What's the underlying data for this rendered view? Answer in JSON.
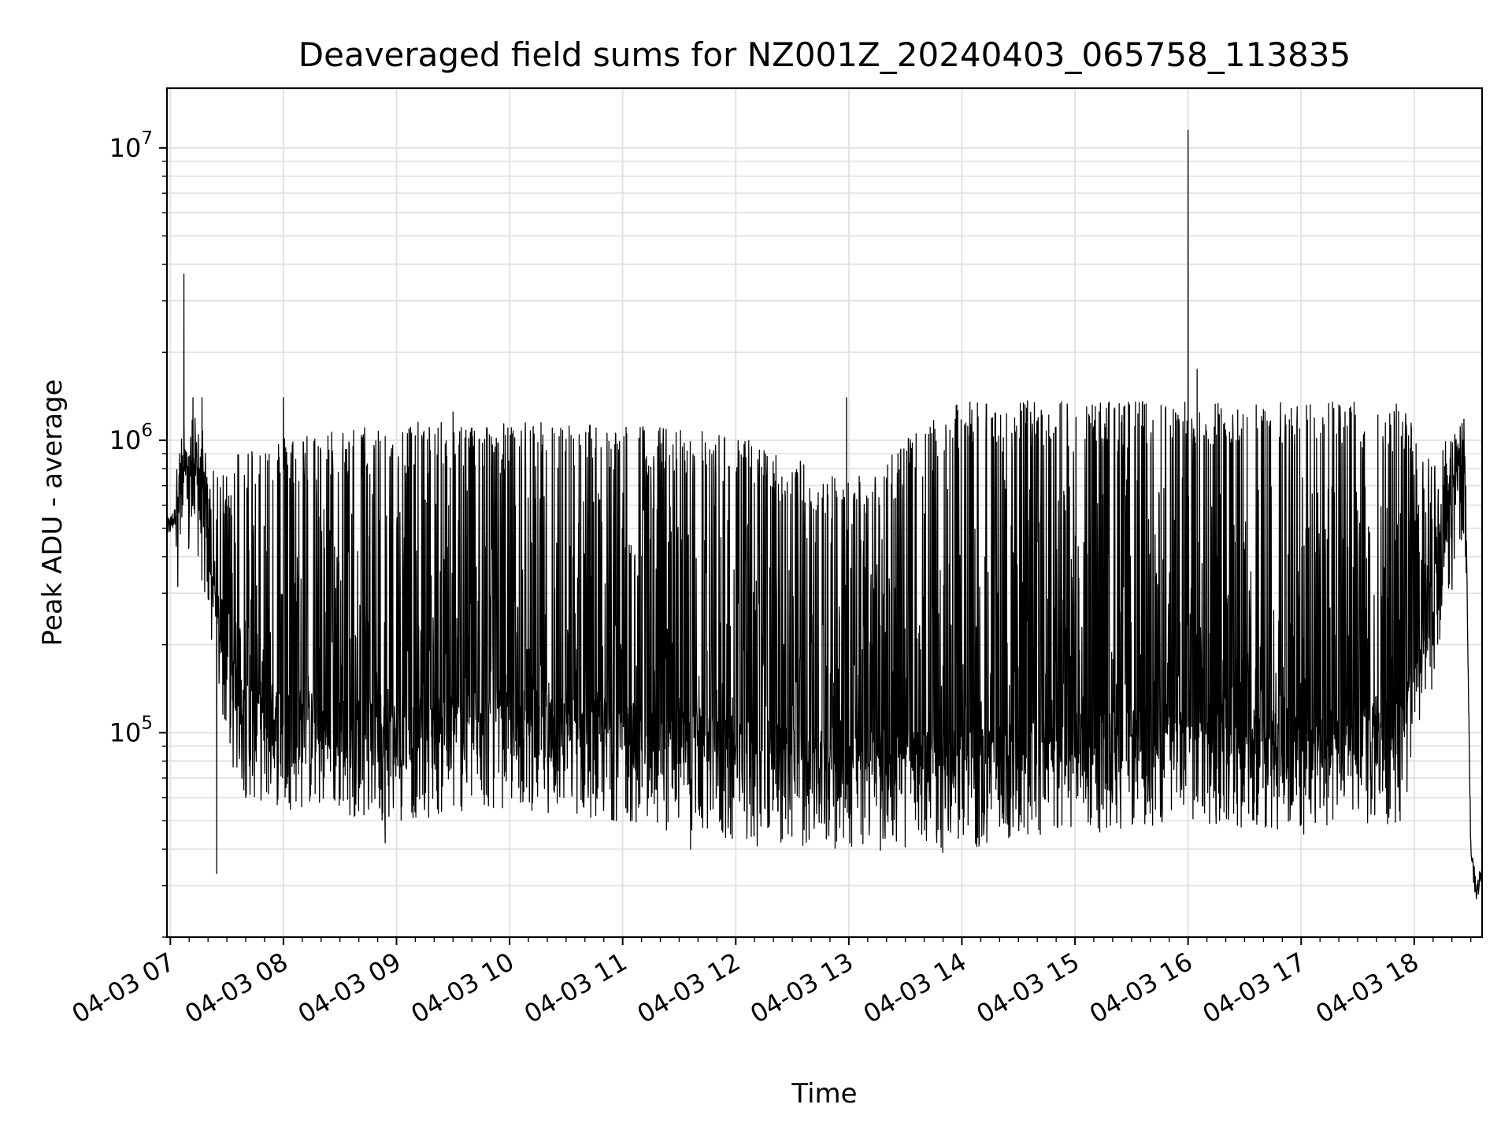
{
  "chart_data": {
    "type": "line",
    "title": "Deaveraged field sums for NZ001Z_20240403_065758_113835",
    "xlabel": "Time",
    "ylabel": "Peak ADU - average",
    "y_scale": "log",
    "ylim": [
      20000,
      16000000
    ],
    "x_range_hours": [
      6.97,
      18.6
    ],
    "grid": true,
    "legend": "none",
    "line_color": "#000000",
    "x_ticks": [
      {
        "hour": 7,
        "label": "04-03 07"
      },
      {
        "hour": 8,
        "label": "04-03 08"
      },
      {
        "hour": 9,
        "label": "04-03 09"
      },
      {
        "hour": 10,
        "label": "04-03 10"
      },
      {
        "hour": 11,
        "label": "04-03 11"
      },
      {
        "hour": 12,
        "label": "04-03 12"
      },
      {
        "hour": 13,
        "label": "04-03 13"
      },
      {
        "hour": 14,
        "label": "04-03 14"
      },
      {
        "hour": 15,
        "label": "04-03 15"
      },
      {
        "hour": 16,
        "label": "04-03 16"
      },
      {
        "hour": 17,
        "label": "04-03 17"
      },
      {
        "hour": 18,
        "label": "04-03 18"
      }
    ],
    "y_ticks": [
      {
        "value": 100000,
        "base": "10",
        "exp": "5"
      },
      {
        "value": 1000000,
        "base": "10",
        "exp": "6"
      },
      {
        "value": 10000000,
        "base": "10",
        "exp": "7"
      }
    ],
    "series": [
      {
        "envelope": {
          "hours": [
            6.98,
            7.1,
            7.25,
            7.4,
            7.6,
            8.0,
            9.0,
            10.0,
            11.0,
            12.0,
            13.0,
            14.0,
            15.0,
            16.0,
            17.0,
            17.9,
            18.1,
            18.3,
            18.4,
            18.45,
            18.5,
            18.55,
            18.6
          ],
          "base": [
            500000,
            600000,
            700000,
            250000,
            110000,
            100000,
            90000,
            100000,
            90000,
            75000,
            72000,
            70000,
            80000,
            90000,
            80000,
            90000,
            200000,
            450000,
            750000,
            900000,
            40000,
            28000,
            35000
          ],
          "peak": [
            600000,
            1100000,
            1200000,
            700000,
            900000,
            1000000,
            1100000,
            1100000,
            1100000,
            1000000,
            700000,
            1300000,
            1300000,
            1300000,
            1300000,
            1300000,
            800000,
            1000000,
            1100000,
            1100000,
            40000,
            30000,
            45000
          ]
        },
        "spikes": [
          {
            "hour": 7.12,
            "value": 3700000
          },
          {
            "hour": 7.2,
            "value": 1400000
          },
          {
            "hour": 7.28,
            "value": 1400000
          },
          {
            "hour": 7.41,
            "value": 33000
          },
          {
            "hour": 8.0,
            "value": 1400000
          },
          {
            "hour": 8.9,
            "value": 42000
          },
          {
            "hour": 9.5,
            "value": 1250000
          },
          {
            "hour": 11.6,
            "value": 40000
          },
          {
            "hour": 12.98,
            "value": 1400000
          },
          {
            "hour": 14.13,
            "value": 42000
          },
          {
            "hour": 16.0,
            "value": 11500000
          },
          {
            "hour": 16.08,
            "value": 1750000
          },
          {
            "hour": 18.55,
            "value": 27000
          }
        ]
      }
    ]
  }
}
